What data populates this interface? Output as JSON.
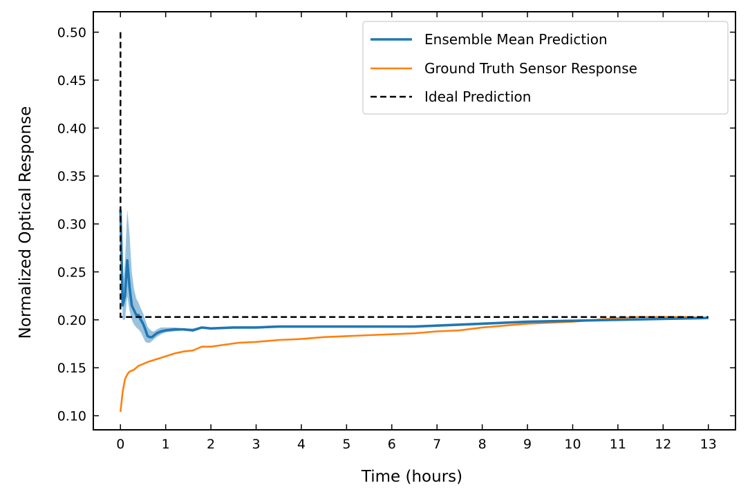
{
  "chart_data": {
    "type": "line",
    "xlabel": "Time (hours)",
    "ylabel": "Normalized Optical Response",
    "xlim": [
      -0.6,
      13.6
    ],
    "ylim": [
      0.0853,
      0.5213
    ],
    "x_ticks": [
      0,
      1,
      2,
      3,
      4,
      5,
      6,
      7,
      8,
      9,
      10,
      11,
      12,
      13
    ],
    "x_tick_labels": [
      "0",
      "1",
      "2",
      "3",
      "4",
      "5",
      "6",
      "7",
      "8",
      "9",
      "10",
      "11",
      "12",
      "13"
    ],
    "y_ticks": [
      0.1,
      0.15,
      0.2,
      0.25,
      0.3,
      0.35,
      0.4,
      0.45,
      0.5
    ],
    "y_tick_labels": [
      "0.10",
      "0.15",
      "0.20",
      "0.25",
      "0.30",
      "0.35",
      "0.40",
      "0.45",
      "0.50"
    ],
    "grid": false,
    "legend_position": "top-right",
    "series": [
      {
        "name": "Ensemble Mean Prediction",
        "color": "#1f77b4",
        "x": [
          0.0,
          0.05,
          0.1,
          0.15,
          0.2,
          0.25,
          0.3,
          0.35,
          0.4,
          0.45,
          0.5,
          0.55,
          0.6,
          0.65,
          0.7,
          0.75,
          0.8,
          0.9,
          1.0,
          1.2,
          1.4,
          1.6,
          1.8,
          2.0,
          2.5,
          3.0,
          3.5,
          4.0,
          5.0,
          6.0,
          6.5,
          7.0,
          8.0,
          9.0,
          10.0,
          11.0,
          12.0,
          13.0
        ],
        "y": [
          0.315,
          0.215,
          0.225,
          0.262,
          0.235,
          0.215,
          0.21,
          0.205,
          0.205,
          0.2,
          0.196,
          0.19,
          0.183,
          0.182,
          0.182,
          0.184,
          0.186,
          0.188,
          0.189,
          0.19,
          0.19,
          0.189,
          0.192,
          0.191,
          0.192,
          0.192,
          0.193,
          0.193,
          0.193,
          0.193,
          0.193,
          0.194,
          0.196,
          0.198,
          0.199,
          0.2,
          0.201,
          0.202
        ],
        "band_lower": [
          0.295,
          0.2,
          0.2,
          0.225,
          0.21,
          0.2,
          0.195,
          0.192,
          0.19,
          0.187,
          0.182,
          0.177,
          0.176,
          0.176,
          0.178,
          0.18,
          0.182,
          0.185,
          0.187,
          0.188,
          0.189,
          0.188,
          0.191,
          0.19,
          0.191,
          0.191,
          0.192,
          0.192,
          0.192,
          0.192,
          0.192,
          0.193,
          0.195,
          0.197,
          0.198,
          0.199,
          0.2,
          0.201
        ],
        "band_upper": [
          0.325,
          0.235,
          0.26,
          0.315,
          0.29,
          0.25,
          0.232,
          0.222,
          0.218,
          0.212,
          0.207,
          0.2,
          0.193,
          0.19,
          0.188,
          0.188,
          0.19,
          0.192,
          0.192,
          0.192,
          0.191,
          0.191,
          0.193,
          0.192,
          0.193,
          0.193,
          0.194,
          0.194,
          0.194,
          0.194,
          0.194,
          0.195,
          0.197,
          0.199,
          0.2,
          0.201,
          0.202,
          0.203
        ]
      },
      {
        "name": "Ground Truth Sensor Response",
        "color": "#ff7f0e",
        "x": [
          0.0,
          0.05,
          0.1,
          0.15,
          0.2,
          0.3,
          0.4,
          0.5,
          0.6,
          0.8,
          1.0,
          1.2,
          1.4,
          1.6,
          1.8,
          2.0,
          2.3,
          2.6,
          3.0,
          3.5,
          4.0,
          4.5,
          5.0,
          5.5,
          6.0,
          6.5,
          7.0,
          7.5,
          8.0,
          8.5,
          9.0,
          9.5,
          10.0,
          10.5,
          11.0,
          11.5,
          12.0,
          12.5,
          13.0
        ],
        "y": [
          0.104,
          0.125,
          0.138,
          0.143,
          0.146,
          0.148,
          0.152,
          0.154,
          0.156,
          0.159,
          0.162,
          0.165,
          0.167,
          0.168,
          0.172,
          0.172,
          0.174,
          0.176,
          0.177,
          0.179,
          0.18,
          0.182,
          0.183,
          0.184,
          0.185,
          0.186,
          0.188,
          0.189,
          0.192,
          0.194,
          0.196,
          0.197,
          0.198,
          0.2,
          0.202,
          0.203,
          0.203,
          0.203,
          0.202
        ]
      },
      {
        "name": "Ideal Prediction",
        "color": "#000000",
        "dashed": true,
        "x": [
          0.0,
          0.0,
          13.0
        ],
        "y": [
          0.5,
          0.203,
          0.203
        ]
      }
    ]
  }
}
